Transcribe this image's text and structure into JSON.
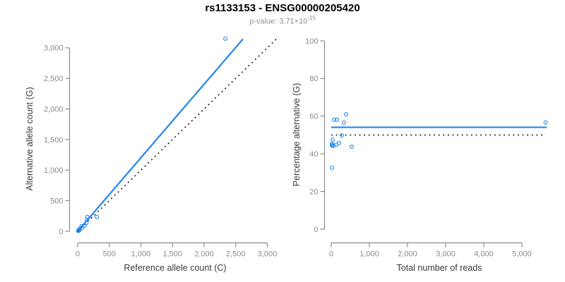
{
  "header": {
    "title": "rs1133153 - ENSG00000205420",
    "subtitle_base": "p-value: 3.71×10",
    "subtitle_exponent": "-15"
  },
  "colors": {
    "accent_blue": "#1E86F0",
    "dotted_black": "#000000",
    "axis_gray": "#8C8C8C",
    "tick_text_gray": "#8A8A8A",
    "axis_label_dark": "#3B3B3B",
    "subtitle_gray": "#8F8F8F"
  },
  "chart_data": [
    {
      "id": "allele-count-scatter",
      "type": "scatter",
      "title": "",
      "xlabel": "Reference allele count (C)",
      "ylabel": "Alternative allele count (G)",
      "xlim": [
        0,
        3000
      ],
      "ylim": [
        0,
        3000
      ],
      "grid": false,
      "xticks": {
        "values": [
          0,
          500,
          1000,
          1500,
          2000,
          2500,
          3000
        ],
        "labels": [
          "0",
          "500",
          "1,000",
          "1,500",
          "2,000",
          "2,500",
          "3,000"
        ]
      },
      "yticks": {
        "values": [
          0,
          500,
          1000,
          1500,
          2000,
          2500,
          3000
        ],
        "labels": [
          "0",
          "500",
          "1,000",
          "1,500",
          "2,000",
          "2,500",
          "3,000"
        ]
      },
      "points": [
        [
          8,
          7
        ],
        [
          11,
          9
        ],
        [
          13,
          6
        ],
        [
          17,
          13
        ],
        [
          19,
          18
        ],
        [
          31,
          25
        ],
        [
          31,
          43
        ],
        [
          62,
          86
        ],
        [
          72,
          58
        ],
        [
          111,
          93
        ],
        [
          140,
          138
        ],
        [
          145,
          188
        ],
        [
          153,
          236
        ],
        [
          302,
          235
        ],
        [
          2335,
          3150
        ]
      ],
      "lines": [
        {
          "name": "regression-line",
          "style": "solid",
          "color_role": "accent_blue",
          "x1": 0,
          "y1": 0,
          "x2": 2615,
          "y2": 3145
        },
        {
          "name": "identity-line",
          "style": "dotted",
          "color_role": "dotted_black",
          "x1": 0,
          "y1": 0,
          "x2": 3145,
          "y2": 3145
        }
      ]
    },
    {
      "id": "percentage-vs-reads-scatter",
      "type": "scatter",
      "title": "",
      "xlabel": "Total number of reads",
      "ylabel": "Percentage alternative (G)",
      "xlim": [
        0,
        5000
      ],
      "ylim": [
        0,
        100
      ],
      "grid": false,
      "xticks": {
        "values": [
          0,
          1000,
          2000,
          3000,
          4000,
          5000
        ],
        "labels": [
          "0",
          "1,000",
          "2,000",
          "3,000",
          "4,000",
          "5,000"
        ]
      },
      "yticks": {
        "values": [
          0,
          20,
          40,
          60,
          80,
          100
        ],
        "labels": [
          "0",
          "20",
          "40",
          "60",
          "80",
          "100"
        ]
      },
      "points": [
        [
          19,
          32.6
        ],
        [
          15,
          45.3
        ],
        [
          20,
          44.4
        ],
        [
          30,
          44.7
        ],
        [
          37,
          47.6
        ],
        [
          56,
          44.2
        ],
        [
          74,
          58.1
        ],
        [
          130,
          44.9
        ],
        [
          148,
          58.1
        ],
        [
          204,
          45.7
        ],
        [
          278,
          49.8
        ],
        [
          333,
          56.6
        ],
        [
          389,
          61.0
        ],
        [
          537,
          43.8
        ],
        [
          5620,
          56.6
        ]
      ],
      "lines": [
        {
          "name": "mean-percentage-line",
          "style": "solid",
          "color_role": "accent_blue",
          "x1": 0,
          "y1": 54.1,
          "x2": 5650,
          "y2": 54.1
        },
        {
          "name": "null-fifty-percent-line",
          "style": "dotted",
          "color_role": "dotted_black",
          "x1": 0,
          "y1": 50,
          "x2": 5550,
          "y2": 50
        }
      ]
    }
  ]
}
